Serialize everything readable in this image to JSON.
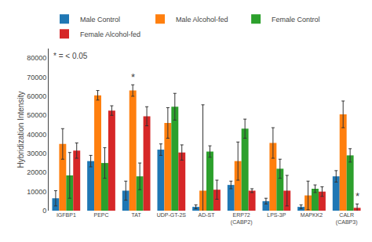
{
  "chart_data": {
    "type": "bar",
    "categories": [
      "IGFBP1",
      "PEPC",
      "TAT",
      "UDP-GT-2S",
      "AD-ST",
      "ERP72\n(CABP2)",
      "LPS-3P",
      "MAPKK2",
      "CALR\n(CABP3)"
    ],
    "series": [
      {
        "name": "Male Control",
        "values": [
          6500,
          26000,
          10500,
          32000,
          2000,
          13500,
          5000,
          2000,
          18000
        ],
        "errors": [
          4000,
          3000,
          5000,
          3000,
          1000,
          2000,
          1500,
          1000,
          3000
        ]
      },
      {
        "name": "Male Alcohol-fed",
        "values": [
          35000,
          60500,
          63000,
          46000,
          10500,
          26000,
          35500,
          8000,
          50500
        ],
        "errors": [
          8000,
          2500,
          3000,
          8000,
          45000,
          10000,
          8000,
          7500,
          7000
        ]
      },
      {
        "name": "Female Control",
        "values": [
          18500,
          25000,
          18000,
          54500,
          31000,
          43000,
          22000,
          11500,
          29000
        ],
        "errors": [
          12000,
          8000,
          7000,
          7000,
          3000,
          5000,
          5000,
          2000,
          3500
        ]
      },
      {
        "name": "Female Alcohol-fed",
        "values": [
          31500,
          52500,
          49500,
          30500,
          11000,
          10500,
          10500,
          10000,
          1500
        ],
        "errors": [
          4000,
          2500,
          5000,
          4000,
          5000,
          1000,
          8000,
          2500,
          2000
        ]
      }
    ],
    "ylabel": "Hybridization Intensity",
    "ylim": [
      0,
      85000
    ],
    "yticks": [
      0,
      10000,
      20000,
      30000,
      40000,
      50000,
      60000,
      70000,
      80000
    ],
    "grid": false,
    "legend": "top",
    "annotations": [
      {
        "text": "*",
        "category": "TAT",
        "series": "Male Alcohol-fed"
      },
      {
        "text": "*",
        "category": "CALR\n(CABP3)",
        "series": "Female Alcohol-fed"
      },
      {
        "text": "* = < 0.05"
      }
    ]
  }
}
